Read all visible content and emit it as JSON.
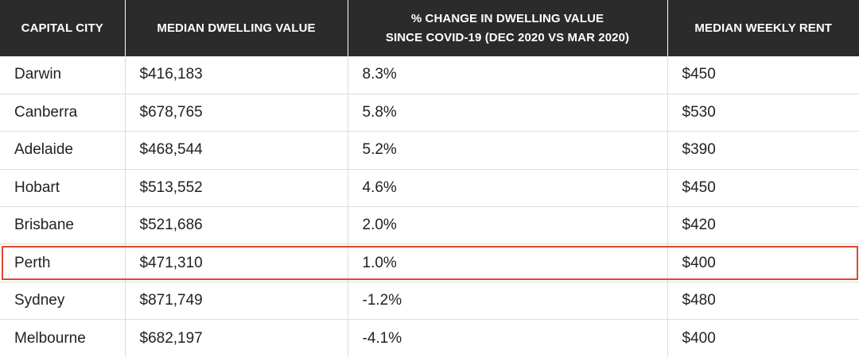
{
  "table": {
    "headers": [
      {
        "lines": [
          "CAPITAL CITY"
        ]
      },
      {
        "lines": [
          "MEDIAN DWELLING VALUE"
        ]
      },
      {
        "lines": [
          "% CHANGE IN DWELLING VALUE",
          "SINCE COVID-19 (DEC 2020 VS MAR 2020)"
        ]
      },
      {
        "lines": [
          "MEDIAN WEEKLY RENT"
        ]
      }
    ],
    "rows": [
      {
        "city": "Darwin",
        "value": "$416,183",
        "change": "8.3%",
        "rent": "$450"
      },
      {
        "city": "Canberra",
        "value": "$678,765",
        "change": "5.8%",
        "rent": "$530"
      },
      {
        "city": "Adelaide",
        "value": "$468,544",
        "change": "5.2%",
        "rent": "$390"
      },
      {
        "city": "Hobart",
        "value": "$513,552",
        "change": "4.6%",
        "rent": "$450"
      },
      {
        "city": "Brisbane",
        "value": "$521,686",
        "change": "2.0%",
        "rent": "$420"
      },
      {
        "city": "Perth",
        "value": "$471,310",
        "change": "1.0%",
        "rent": "$400"
      },
      {
        "city": "Sydney",
        "value": "$871,749",
        "change": "-1.2%",
        "rent": "$480"
      },
      {
        "city": "Melbourne",
        "value": "$682,197",
        "change": "-4.1%",
        "rent": "$400"
      }
    ],
    "highlighted_row": "Perth",
    "colors": {
      "header_bg": "#2b2b2b",
      "header_text": "#ffffff",
      "highlight_border": "#e0462f",
      "cell_text": "#222222",
      "grid_line": "#dcdcdc"
    }
  }
}
